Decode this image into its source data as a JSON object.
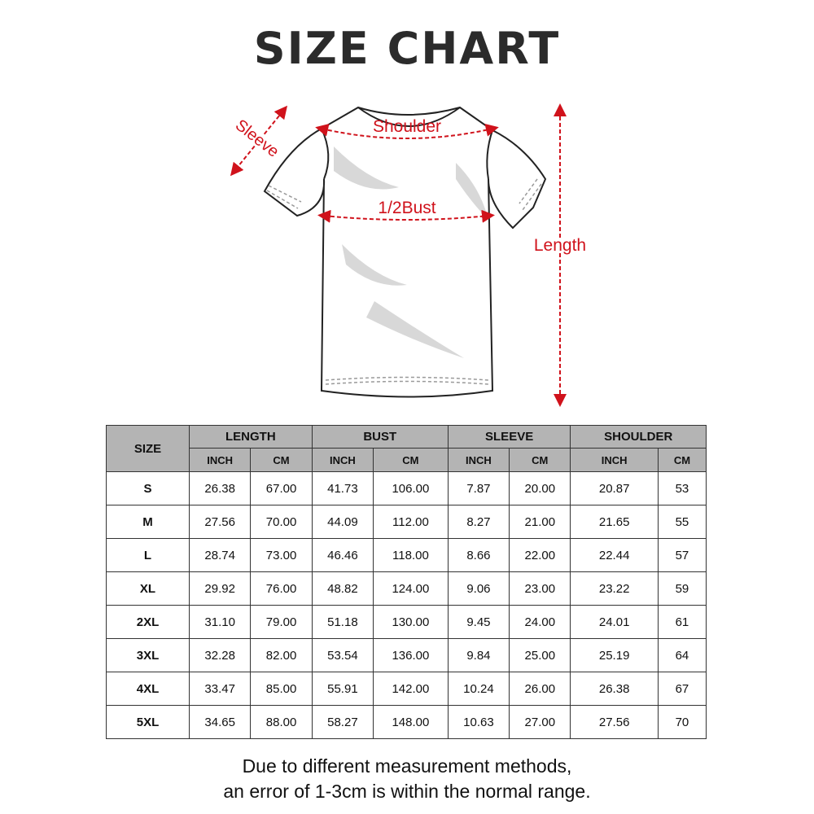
{
  "title": "SIZE CHART",
  "diagram": {
    "labels": {
      "sleeve": "Sleeve",
      "shoulder": "Shoulder",
      "bust": "1/2Bust",
      "length": "Length"
    },
    "accent_color": "#d0121b"
  },
  "table": {
    "size_header": "SIZE",
    "groups": [
      "LENGTH",
      "BUST",
      "SLEEVE",
      "SHOULDER"
    ],
    "units": [
      "INCH",
      "CM",
      "INCH",
      "CM",
      "INCH",
      "CM",
      "INCH",
      "CM"
    ],
    "header_color": "#b4b4b4",
    "rows": [
      [
        "S",
        "26.38",
        "67.00",
        "41.73",
        "106.00",
        "7.87",
        "20.00",
        "20.87",
        "53"
      ],
      [
        "M",
        "27.56",
        "70.00",
        "44.09",
        "112.00",
        "8.27",
        "21.00",
        "21.65",
        "55"
      ],
      [
        "L",
        "28.74",
        "73.00",
        "46.46",
        "118.00",
        "8.66",
        "22.00",
        "22.44",
        "57"
      ],
      [
        "XL",
        "29.92",
        "76.00",
        "48.82",
        "124.00",
        "9.06",
        "23.00",
        "23.22",
        "59"
      ],
      [
        "2XL",
        "31.10",
        "79.00",
        "51.18",
        "130.00",
        "9.45",
        "24.00",
        "24.01",
        "61"
      ],
      [
        "3XL",
        "32.28",
        "82.00",
        "53.54",
        "136.00",
        "9.84",
        "25.00",
        "25.19",
        "64"
      ],
      [
        "4XL",
        "33.47",
        "85.00",
        "55.91",
        "142.00",
        "10.24",
        "26.00",
        "26.38",
        "67"
      ],
      [
        "5XL",
        "34.65",
        "88.00",
        "58.27",
        "148.00",
        "10.63",
        "27.00",
        "27.56",
        "70"
      ]
    ]
  },
  "note": {
    "line1": "Due to different measurement methods,",
    "line2": "an error of 1-3cm is within the normal range."
  }
}
